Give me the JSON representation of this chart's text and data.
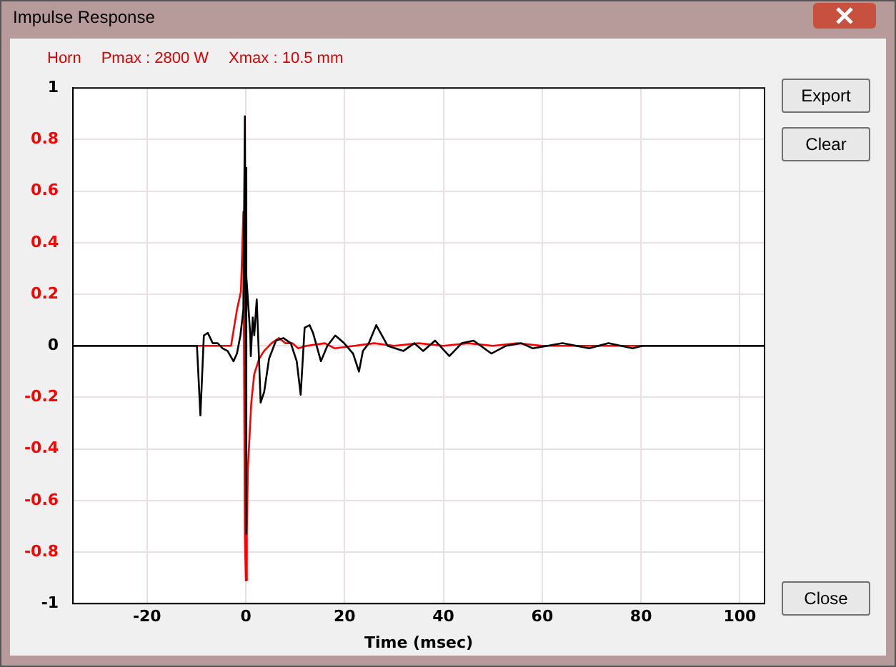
{
  "chart_data": {
    "type": "line",
    "title": "Impulse Response",
    "xlabel": "Time (msec)",
    "annotations": [
      "Horn",
      "Pmax : 2800 W",
      "Xmax : 10.5 mm",
      "Export",
      "Clear",
      "Close"
    ],
    "xlim": [
      -35,
      105
    ],
    "xticks": [
      -20,
      0,
      20,
      40,
      60,
      80,
      100
    ],
    "ylim": [
      -1,
      1
    ],
    "yticks": [
      -1,
      -0.8,
      -0.6,
      -0.4,
      -0.2,
      0,
      0.2,
      0.4,
      0.6,
      0.8,
      1
    ],
    "grid": true,
    "legend": false,
    "series": [
      {
        "color": "#ff0000",
        "x": [
          -35,
          -3,
          -1.8,
          -1,
          -0.8,
          -0.5,
          -0.2,
          0,
          0.2,
          0.4,
          1.1,
          1.7,
          2.7,
          3.7,
          5.2,
          6.7,
          8,
          9.4,
          10.6,
          12.3,
          16,
          18,
          22,
          26,
          30,
          35,
          40,
          45,
          50,
          55,
          60,
          65,
          105
        ],
        "values": [
          0,
          0,
          0.14,
          0.21,
          0.33,
          0.52,
          -0.73,
          -0.91,
          -0.73,
          -0.48,
          -0.22,
          -0.11,
          -0.05,
          -0.02,
          0.01,
          0.03,
          0.01,
          0.01,
          -0.01,
          0,
          0.01,
          -0.01,
          0,
          0.01,
          0,
          0.01,
          0,
          0.01,
          0,
          0.01,
          0,
          0,
          0
        ]
      },
      {
        "color": "#000000",
        "x": [
          -35,
          -9.9,
          -9.2,
          -8.5,
          -7.7,
          -6.7,
          -5.7,
          -4.7,
          -3.7,
          -2.5,
          -1.8,
          -1.1,
          -0.5,
          -0.2,
          0.1,
          0,
          0.2,
          0.9,
          1,
          1.4,
          1.7,
          2.2,
          2.5,
          3,
          3.7,
          4.7,
          6.1,
          7.6,
          9.1,
          10.3,
          11.1,
          11.9,
          12.9,
          13.6,
          15.2,
          16.5,
          18.1,
          19.9,
          21.7,
          22.9,
          23.7,
          24.9,
          26.4,
          28.7,
          31.9,
          34.1,
          35.9,
          38.3,
          41.2,
          43.7,
          46.1,
          49.7,
          52.7,
          55.8,
          58.1,
          64.1,
          69.5,
          73.4,
          78.3,
          80.3,
          105
        ],
        "values": [
          0,
          0,
          -0.27,
          0.04,
          0.05,
          0.01,
          0.01,
          -0.01,
          -0.02,
          -0.06,
          -0.03,
          0.04,
          0.14,
          0.89,
          -0.73,
          0.69,
          0.27,
          0.04,
          -0.04,
          0.11,
          0.04,
          0.18,
          0.03,
          -0.22,
          -0.18,
          -0.05,
          0.02,
          0.03,
          0.01,
          -0.06,
          -0.19,
          0.07,
          0.08,
          0.05,
          -0.06,
          0,
          0.04,
          0.01,
          -0.03,
          -0.1,
          -0.02,
          0.01,
          0.08,
          0,
          -0.02,
          0.01,
          -0.02,
          0.02,
          -0.04,
          0.01,
          0.02,
          -0.03,
          0,
          0.01,
          -0.01,
          0.01,
          -0.01,
          0.01,
          -0.01,
          0,
          0
        ]
      }
    ]
  }
}
